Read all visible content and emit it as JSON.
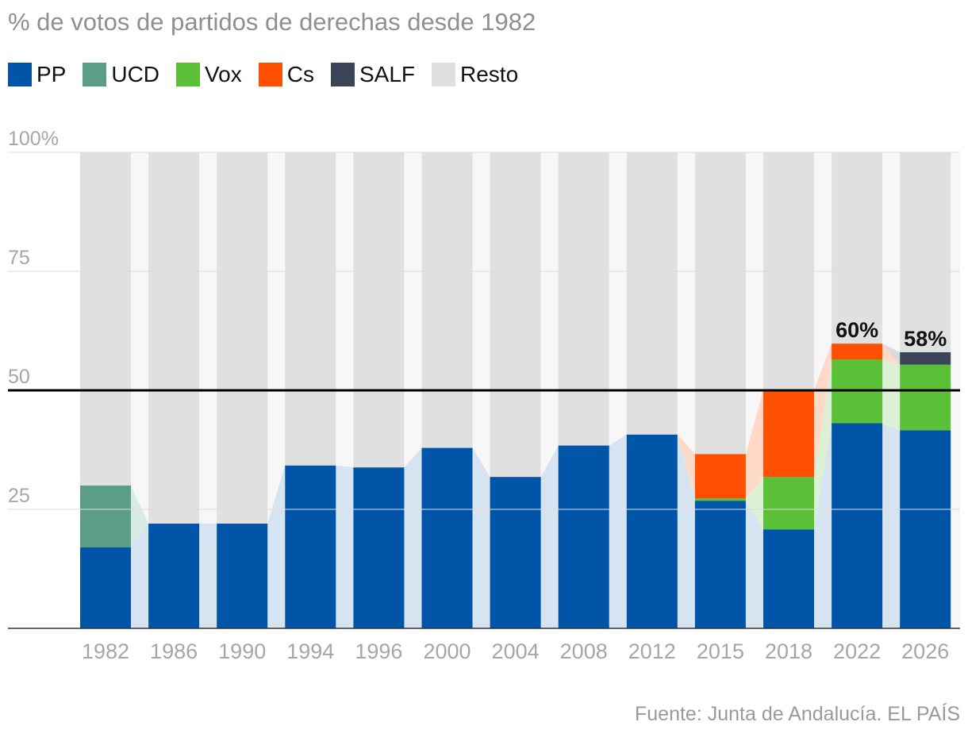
{
  "title": "% de votos de partidos de derechas desde 1982",
  "source": "Fuente: Junta de Andalucía. EL PAÍS",
  "colors": {
    "PP": "#0055a8",
    "UCD": "#5b9e85",
    "Vox": "#5bbf38",
    "Cs": "#fe5000",
    "SALF": "#3c4558",
    "Resto": "#e0e0e0"
  },
  "legend": [
    {
      "key": "PP",
      "label": "PP"
    },
    {
      "key": "UCD",
      "label": "UCD"
    },
    {
      "key": "Vox",
      "label": "Vox"
    },
    {
      "key": "Cs",
      "label": "Cs"
    },
    {
      "key": "SALF",
      "label": "SALF"
    },
    {
      "key": "Resto",
      "label": "Resto"
    }
  ],
  "chart_data": {
    "type": "bar",
    "stacked": true,
    "categories": [
      "1982",
      "1986",
      "1990",
      "1994",
      "1996",
      "2000",
      "2004",
      "2008",
      "2012",
      "2015",
      "2018",
      "2022",
      "2026"
    ],
    "series": [
      {
        "name": "PP",
        "values": [
          17,
          22,
          22,
          34.2,
          33.8,
          37.9,
          31.8,
          38.4,
          40.7,
          26.8,
          20.8,
          43.1,
          41.6
        ]
      },
      {
        "name": "UCD",
        "values": [
          13,
          0,
          0,
          0,
          0,
          0,
          0,
          0,
          0,
          0,
          0,
          0,
          0
        ]
      },
      {
        "name": "Vox",
        "values": [
          0,
          0,
          0,
          0,
          0,
          0,
          0,
          0,
          0,
          0.5,
          11,
          13.4,
          13.8
        ]
      },
      {
        "name": "Cs",
        "values": [
          0,
          0,
          0,
          0,
          0,
          0,
          0,
          0,
          0,
          9.3,
          18.3,
          3.3,
          0
        ]
      },
      {
        "name": "SALF",
        "values": [
          0,
          0,
          0,
          0,
          0,
          0,
          0,
          0,
          0,
          0,
          0,
          0,
          2.6
        ]
      }
    ],
    "y_ticks": [
      "100%",
      "75",
      "50",
      "25"
    ],
    "y_tick_values": [
      100,
      75,
      50,
      25
    ],
    "ylim": [
      0,
      100
    ],
    "reference_line": 50,
    "annotations": [
      {
        "category": "2022",
        "label": "60%"
      },
      {
        "category": "2026",
        "label": "58%"
      }
    ],
    "legend_position": "top-left",
    "grid": true
  }
}
